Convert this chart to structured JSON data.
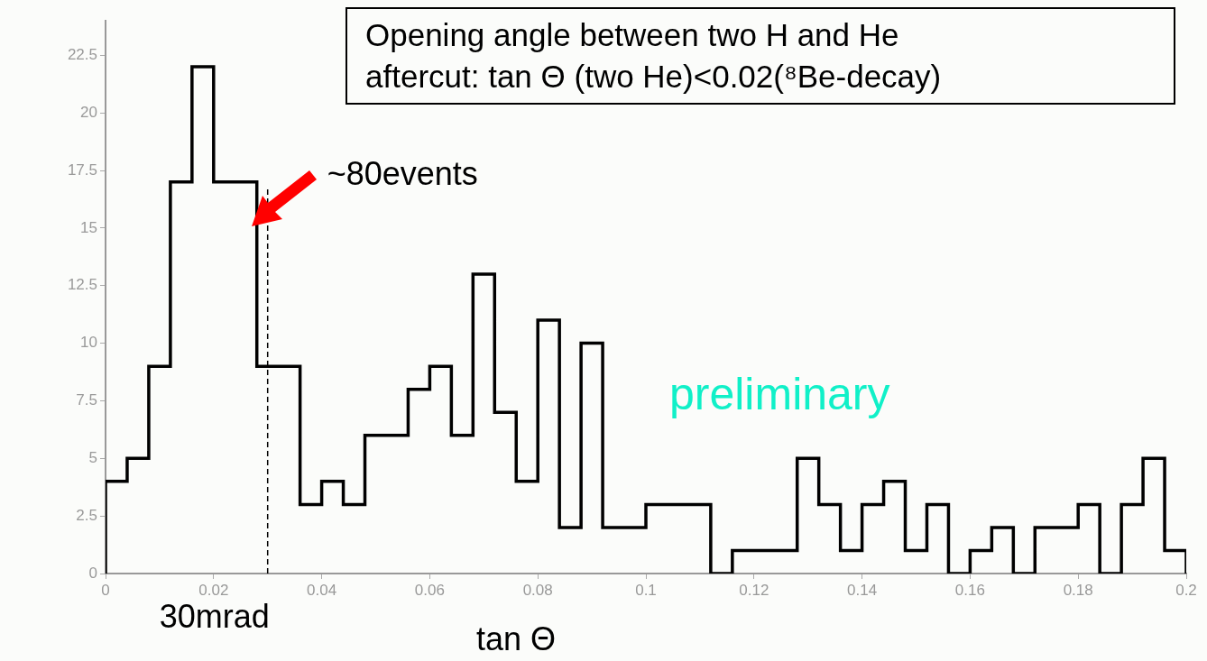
{
  "chart_data": {
    "type": "histogram",
    "title": "Opening angle between two H and He",
    "subtitle": "aftercut: tan Θ (two He)<0.02(⁸Be-decay)",
    "xlabel": "tan Θ",
    "bins": [
      0,
      0.004,
      0.008,
      0.012,
      0.016,
      0.02,
      0.024,
      0.028,
      0.032,
      0.036,
      0.04,
      0.044,
      0.048,
      0.052,
      0.056,
      0.06,
      0.064,
      0.068,
      0.072,
      0.076,
      0.08,
      0.084,
      0.088,
      0.092,
      0.096,
      0.1,
      0.104,
      0.108,
      0.112,
      0.116,
      0.12,
      0.124,
      0.128,
      0.132,
      0.136,
      0.14,
      0.144,
      0.148,
      0.152,
      0.156,
      0.16,
      0.164,
      0.168,
      0.172,
      0.176,
      0.18,
      0.184,
      0.188,
      0.192,
      0.196,
      0.2
    ],
    "values": [
      4,
      5,
      9,
      17,
      22,
      17,
      17,
      9,
      9,
      3,
      4,
      3,
      6,
      6,
      8,
      9,
      6,
      13,
      7,
      4,
      11,
      2,
      10,
      2,
      2,
      3,
      3,
      3,
      0,
      1,
      1,
      1,
      5,
      3,
      1,
      3,
      4,
      1,
      3,
      0,
      1,
      2,
      0,
      2,
      2,
      3,
      0,
      3,
      5,
      1
    ],
    "color": "#000000",
    "xlim": [
      0,
      0.2
    ],
    "xticks": [
      0,
      0.02,
      0.04,
      0.06,
      0.08,
      0.1,
      0.12,
      0.14,
      0.16,
      0.18,
      0.2
    ],
    "ylim": [
      0,
      24
    ],
    "yticks": [
      0,
      2.5,
      5,
      7.5,
      10,
      12.5,
      15,
      17.5,
      20,
      22.5
    ],
    "grid": false,
    "legend": false,
    "ref_lines": [
      {
        "axis": "x",
        "value": 0.03,
        "label": "30mrad",
        "line_style": "dashed"
      }
    ],
    "annotations": [
      {
        "text": "~80events",
        "x": 0.027,
        "y": 15
      },
      "preliminary"
    ]
  }
}
